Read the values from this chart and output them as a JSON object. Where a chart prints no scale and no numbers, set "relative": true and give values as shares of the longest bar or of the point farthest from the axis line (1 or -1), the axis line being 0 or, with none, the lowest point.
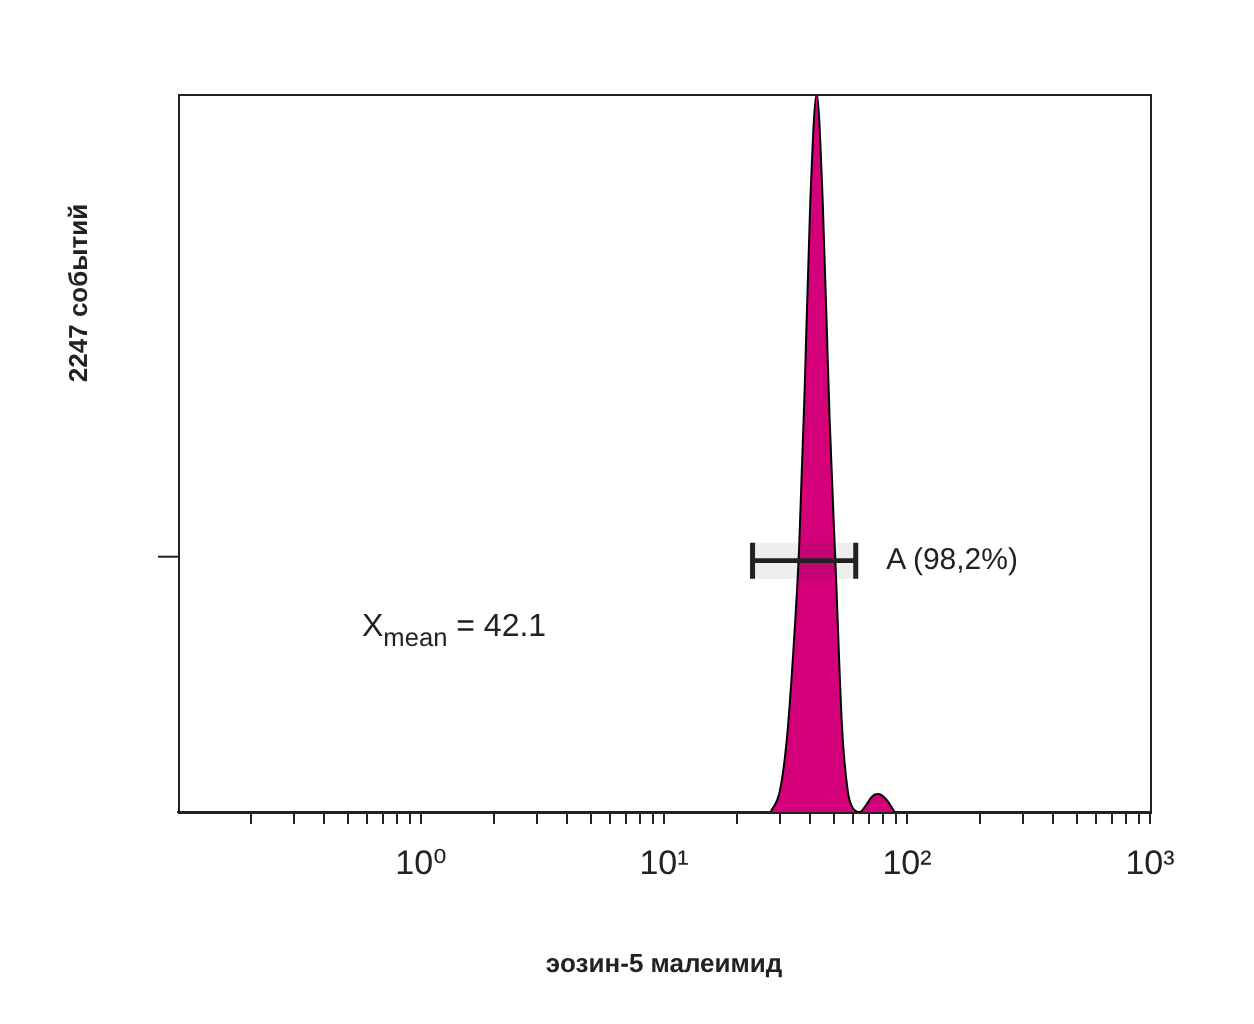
{
  "chart_data": {
    "type": "area",
    "relative": true,
    "xlabel": "эозин-5 малеимид",
    "ylabel": "2247 событий",
    "log": "x",
    "xlim": [
      0.1,
      1000
    ],
    "xticks": [
      {
        "value": 0.2,
        "label": null
      },
      {
        "value": 0.3,
        "label": null
      },
      {
        "value": 0.4,
        "label": null
      },
      {
        "value": 0.5,
        "label": null
      },
      {
        "value": 0.6,
        "label": null
      },
      {
        "value": 0.7,
        "label": null
      },
      {
        "value": 0.8,
        "label": null
      },
      {
        "value": 0.9,
        "label": null
      },
      {
        "value": 1,
        "label": "10⁰"
      },
      {
        "value": 2,
        "label": null
      },
      {
        "value": 3,
        "label": null
      },
      {
        "value": 4,
        "label": null
      },
      {
        "value": 5,
        "label": null
      },
      {
        "value": 6,
        "label": null
      },
      {
        "value": 7,
        "label": null
      },
      {
        "value": 8,
        "label": null
      },
      {
        "value": 9,
        "label": null
      },
      {
        "value": 10,
        "label": "10¹"
      },
      {
        "value": 20,
        "label": null
      },
      {
        "value": 30,
        "label": null
      },
      {
        "value": 40,
        "label": null
      },
      {
        "value": 50,
        "label": null
      },
      {
        "value": 60,
        "label": null
      },
      {
        "value": 70,
        "label": null
      },
      {
        "value": 80,
        "label": null
      },
      {
        "value": 90,
        "label": null
      },
      {
        "value": 100,
        "label": "10²"
      },
      {
        "value": 200,
        "label": null
      },
      {
        "value": 300,
        "label": null
      },
      {
        "value": 400,
        "label": null
      },
      {
        "value": 500,
        "label": null
      },
      {
        "value": 600,
        "label": null
      },
      {
        "value": 700,
        "label": null
      },
      {
        "value": 800,
        "label": null
      },
      {
        "value": 900,
        "label": null
      },
      {
        "value": 1000,
        "label": "10³"
      }
    ],
    "series": [
      {
        "color": "#d4007a",
        "x": [
          27.5,
          30,
          32,
          34,
          36,
          38,
          40,
          42.5,
          45,
          48,
          51,
          54,
          57,
          60,
          64,
          68,
          72,
          76,
          82,
          89
        ],
        "values": [
          0,
          0.03,
          0.1,
          0.22,
          0.37,
          0.6,
          0.85,
          1,
          0.85,
          0.55,
          0.33,
          0.12,
          0.03,
          0.005,
          0,
          0.01,
          0.022,
          0.025,
          0.018,
          0
        ]
      }
    ],
    "bands": [
      {
        "axis": "x",
        "from": 22.6,
        "to": 63,
        "label": "A (98,2%)"
      }
    ],
    "annotations": [
      "X$_{mean}$ = 42.1"
    ],
    "grid": false,
    "legend": false
  }
}
